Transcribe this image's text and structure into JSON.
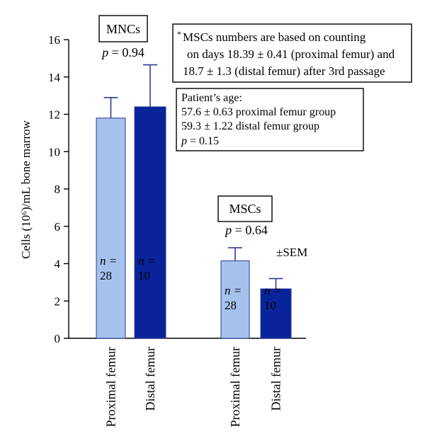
{
  "chart_data": {
    "type": "bar",
    "ylabel": "Cells (10⁶)/mL bone marrow",
    "ylim": [
      0,
      16
    ],
    "yticks": [
      0,
      2,
      4,
      6,
      8,
      10,
      12,
      14,
      16
    ],
    "groups": [
      {
        "name": "MNCs",
        "p_prefix": "p",
        "p_value": "= 0.94",
        "bars": [
          {
            "category": "Proximal femur",
            "value": 11.8,
            "error": 1.1,
            "n_label": "n =",
            "n": "28",
            "color": "#a4c2ec",
            "n_color": "#000000"
          },
          {
            "category": "Distal femur",
            "value": 12.4,
            "error": 2.25,
            "n_label": "n =",
            "n": "10",
            "color": "#09249a",
            "n_color": "#f6e51c"
          }
        ]
      },
      {
        "name": "MSCs",
        "p_prefix": "p",
        "p_value": "= 0.64",
        "bars": [
          {
            "category": "Proximal femur",
            "value": 4.15,
            "error": 0.7,
            "n_label": "n =",
            "n": "28",
            "color": "#a4c2ec",
            "n_color": "#000000"
          },
          {
            "category": "Distal femur",
            "value": 2.65,
            "error": 0.55,
            "n_label": "n =",
            "n": "10",
            "color": "#09249a",
            "n_color": "#f6e51c"
          }
        ]
      }
    ],
    "sem_label": "±SEM"
  },
  "note_msc": {
    "star": "*",
    "line1": "MSCs numbers are based on counting",
    "line2": "on days 18.39 ± 0.41 (proximal femur) and",
    "line3": "18.7 ± 1.3 (distal femur) after 3rd passage"
  },
  "note_age": {
    "line1": "Patient’s age:",
    "line2": "57.6 ± 0.63 proximal femur group",
    "line3": "59.3 ± 1.22 distal femur group",
    "p_prefix": "p",
    "p_value": "= 0.15"
  },
  "colors": {
    "proximal": "#a4c2ec",
    "distal": "#09249a",
    "error_bar": "#2c3b98",
    "n_on_dark": "#f6e51c"
  }
}
